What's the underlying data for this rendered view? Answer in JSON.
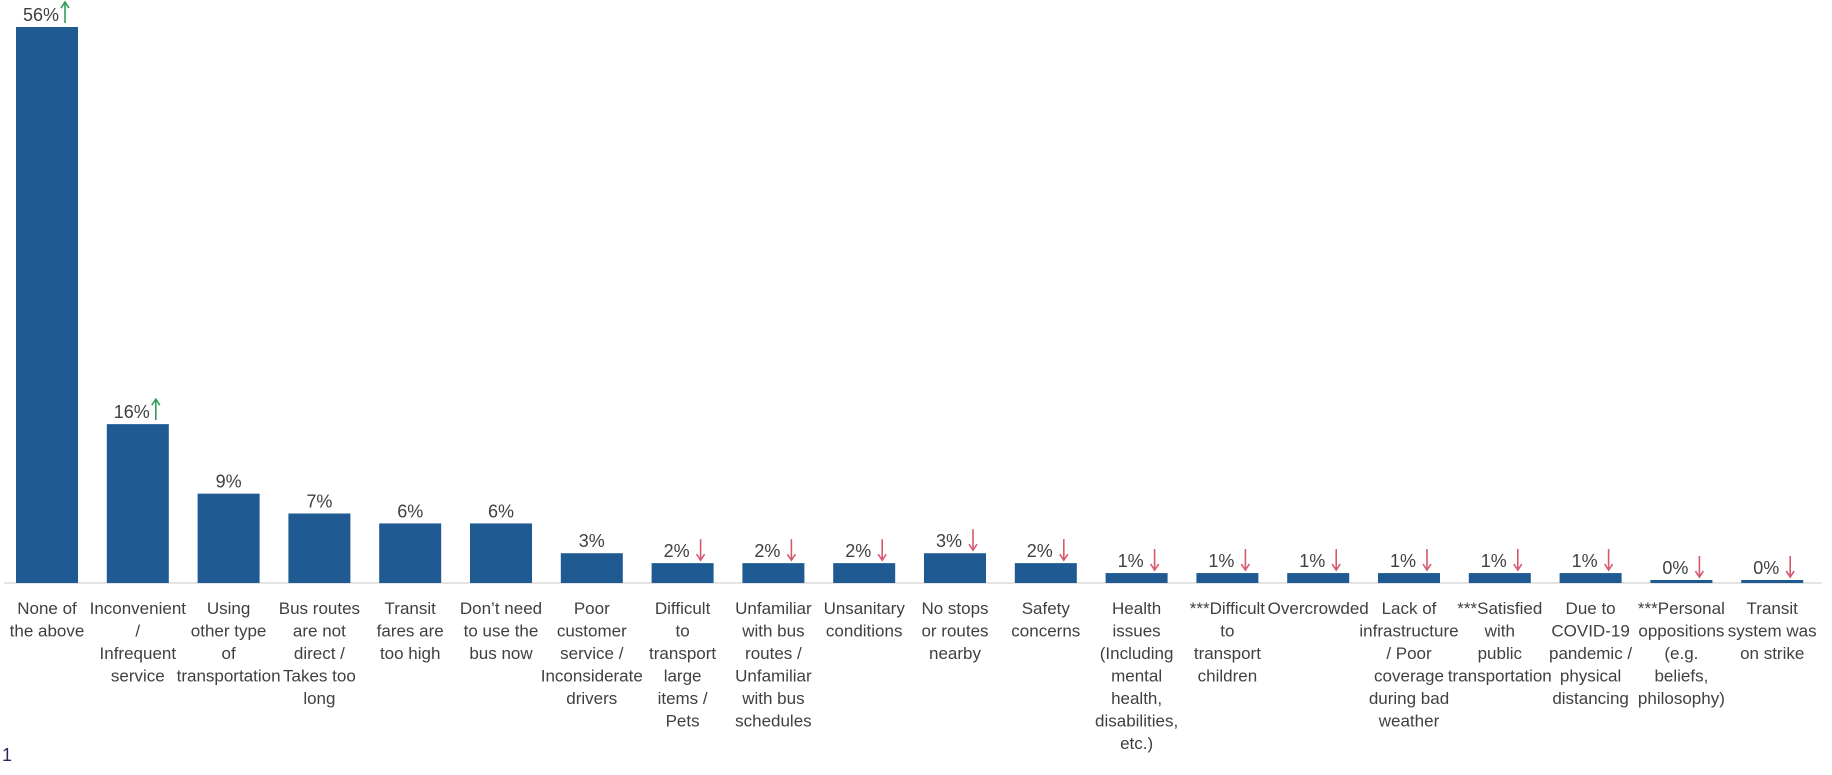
{
  "footnote": "1",
  "chart_data": {
    "type": "bar",
    "title": "",
    "xlabel": "",
    "ylabel": "",
    "ylim": [
      0,
      56
    ],
    "grid": false,
    "legend": "none",
    "bar_color": "#1f5a93",
    "up_color": "#2e9e5a",
    "down_color": "#d8596c",
    "categories": [
      [
        "None of",
        "the above"
      ],
      [
        "Inconvenient",
        "/",
        "Infrequent",
        "service"
      ],
      [
        "Using",
        "other type",
        "of",
        "transportation"
      ],
      [
        "Bus routes",
        "are not",
        "direct /",
        "Takes too",
        "long"
      ],
      [
        "Transit",
        "fares are",
        "too high"
      ],
      [
        "Don’t need",
        "to use the",
        "bus now"
      ],
      [
        "Poor",
        "customer",
        "service /",
        "Inconsiderate",
        "drivers"
      ],
      [
        "Difficult",
        "to",
        "transport",
        "large",
        "items /",
        "Pets"
      ],
      [
        "Unfamiliar",
        "with bus",
        "routes /",
        "Unfamiliar",
        "with bus",
        "schedules"
      ],
      [
        "Unsanitary",
        "conditions"
      ],
      [
        "No stops",
        "or routes",
        "nearby"
      ],
      [
        "Safety",
        "concerns"
      ],
      [
        "Health",
        "issues",
        "(Including",
        "mental",
        "health,",
        "disabilities,",
        "etc.)"
      ],
      [
        "***Difficult",
        "to",
        "transport",
        "children"
      ],
      [
        "Overcrowded"
      ],
      [
        "Lack of",
        "infrastructure",
        "/ Poor",
        "coverage",
        "during bad",
        "weather"
      ],
      [
        "***Satisfied",
        "with",
        "public",
        "transportation"
      ],
      [
        "Due to",
        "COVID-19",
        "pandemic /",
        "physical",
        "distancing"
      ],
      [
        "***Personal",
        "oppositions",
        "(e.g.",
        "beliefs,",
        "philosophy)"
      ],
      [
        "Transit",
        "system was",
        "on strike"
      ]
    ],
    "values": [
      56,
      16,
      9,
      7,
      6,
      6,
      3,
      2,
      2,
      2,
      3,
      2,
      1,
      1,
      1,
      1,
      1,
      1,
      0,
      0
    ],
    "data_labels": [
      "56%",
      "16%",
      "9%",
      "7%",
      "6%",
      "6%",
      "3%",
      "2%",
      "2%",
      "2%",
      "3%",
      "2%",
      "1%",
      "1%",
      "1%",
      "1%",
      "1%",
      "1%",
      "0%",
      "0%"
    ],
    "trend": [
      "up",
      "up",
      "",
      "",
      "",
      "",
      "",
      "down",
      "down",
      "down",
      "down",
      "down",
      "down",
      "down",
      "down",
      "down",
      "down",
      "down",
      "down",
      "down"
    ]
  }
}
